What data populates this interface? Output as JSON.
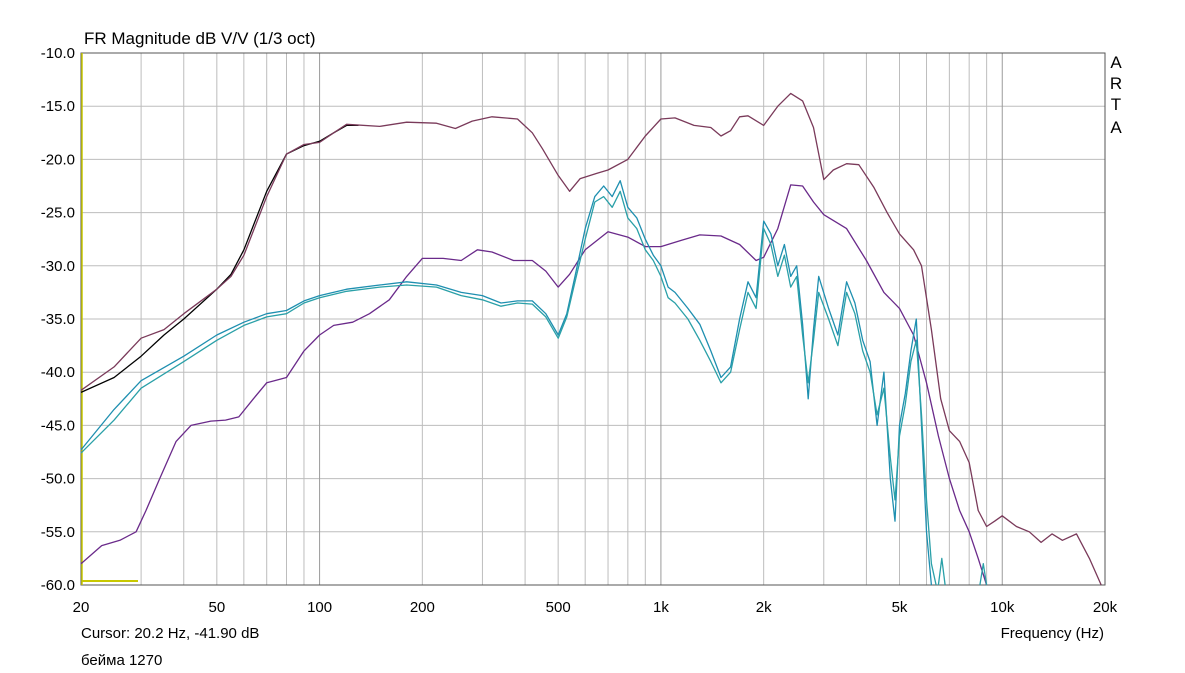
{
  "chart_data": {
    "type": "line",
    "title": "FR Magnitude dB V/V (1/3 oct)",
    "xlabel": "Frequency (Hz)",
    "ylabel": "",
    "x_scale": "log",
    "xlim": [
      20,
      20000
    ],
    "ylim": [
      -60,
      -10
    ],
    "grid": true,
    "y_ticks": [
      "-10.0",
      "-15.0",
      "-20.0",
      "-25.0",
      "-30.0",
      "-35.0",
      "-40.0",
      "-45.0",
      "-50.0",
      "-55.0",
      "-60.0"
    ],
    "x_ticks": [
      {
        "value": 20,
        "label": "20"
      },
      {
        "value": 50,
        "label": "50"
      },
      {
        "value": 100,
        "label": "100"
      },
      {
        "value": 200,
        "label": "200"
      },
      {
        "value": 500,
        "label": "500"
      },
      {
        "value": 1000,
        "label": "1k"
      },
      {
        "value": 2000,
        "label": "2k"
      },
      {
        "value": 5000,
        "label": "5k"
      },
      {
        "value": 10000,
        "label": "10k"
      },
      {
        "value": 20000,
        "label": "20k"
      }
    ],
    "series": [
      {
        "color": "#000000",
        "points": [
          [
            20,
            -41.9
          ],
          [
            25,
            -40.5
          ],
          [
            30,
            -38.5
          ],
          [
            35,
            -36.5
          ],
          [
            40,
            -35
          ],
          [
            50,
            -32.2
          ],
          [
            55,
            -30.8
          ],
          [
            60,
            -28.5
          ],
          [
            70,
            -23
          ],
          [
            80,
            -19.5
          ],
          [
            90,
            -18.7
          ],
          [
            100,
            -18.3
          ],
          [
            110,
            -17.5
          ],
          [
            120,
            -16.8
          ],
          [
            130,
            -16.8
          ]
        ]
      },
      {
        "color": "#7a3a5a",
        "points": [
          [
            20,
            -41.7
          ],
          [
            25,
            -39.5
          ],
          [
            30,
            -36.8
          ],
          [
            35,
            -36
          ],
          [
            40,
            -34.5
          ],
          [
            50,
            -32.2
          ],
          [
            55,
            -31
          ],
          [
            60,
            -29
          ],
          [
            70,
            -23.5
          ],
          [
            80,
            -19.5
          ],
          [
            90,
            -18.6
          ],
          [
            100,
            -18.4
          ],
          [
            110,
            -17.5
          ],
          [
            120,
            -16.7
          ],
          [
            150,
            -16.9
          ],
          [
            180,
            -16.5
          ],
          [
            220,
            -16.6
          ],
          [
            250,
            -17.1
          ],
          [
            280,
            -16.4
          ],
          [
            320,
            -16.0
          ],
          [
            380,
            -16.2
          ],
          [
            420,
            -17.5
          ],
          [
            450,
            -19
          ],
          [
            500,
            -21.5
          ],
          [
            540,
            -23
          ],
          [
            580,
            -21.8
          ],
          [
            650,
            -21.3
          ],
          [
            700,
            -21
          ],
          [
            800,
            -20
          ],
          [
            900,
            -17.8
          ],
          [
            1000,
            -16.2
          ],
          [
            1100,
            -16.1
          ],
          [
            1250,
            -16.8
          ],
          [
            1400,
            -17.0
          ],
          [
            1500,
            -17.8
          ],
          [
            1600,
            -17.3
          ],
          [
            1700,
            -16.0
          ],
          [
            1800,
            -15.9
          ],
          [
            2000,
            -16.8
          ],
          [
            2200,
            -15
          ],
          [
            2400,
            -13.8
          ],
          [
            2600,
            -14.5
          ],
          [
            2800,
            -17
          ],
          [
            3000,
            -21.9
          ],
          [
            3200,
            -21
          ],
          [
            3500,
            -20.4
          ],
          [
            3800,
            -20.5
          ],
          [
            4200,
            -22.6
          ],
          [
            4600,
            -25
          ],
          [
            5000,
            -27
          ],
          [
            5500,
            -28.5
          ],
          [
            5800,
            -30
          ],
          [
            6200,
            -36
          ],
          [
            6600,
            -42.5
          ],
          [
            7000,
            -45.5
          ],
          [
            7500,
            -46.5
          ],
          [
            8000,
            -48.5
          ],
          [
            8500,
            -53
          ],
          [
            9000,
            -54.5
          ],
          [
            9500,
            -54
          ],
          [
            10000,
            -53.5
          ],
          [
            11000,
            -54.5
          ],
          [
            12000,
            -55
          ],
          [
            13000,
            -56
          ],
          [
            14000,
            -55.2
          ],
          [
            15000,
            -55.8
          ],
          [
            16500,
            -55.2
          ],
          [
            18000,
            -57.5
          ],
          [
            19500,
            -60
          ]
        ]
      },
      {
        "color": "#6a2a8a",
        "points": [
          [
            20,
            -58
          ],
          [
            23,
            -56.3
          ],
          [
            26,
            -55.8
          ],
          [
            29,
            -55
          ],
          [
            31,
            -53
          ],
          [
            34,
            -50
          ],
          [
            38,
            -46.5
          ],
          [
            42,
            -45
          ],
          [
            48,
            -44.6
          ],
          [
            53,
            -44.5
          ],
          [
            58,
            -44.2
          ],
          [
            64,
            -42.5
          ],
          [
            70,
            -41
          ],
          [
            80,
            -40.5
          ],
          [
            90,
            -38
          ],
          [
            100,
            -36.5
          ],
          [
            110,
            -35.6
          ],
          [
            125,
            -35.3
          ],
          [
            140,
            -34.5
          ],
          [
            160,
            -33.2
          ],
          [
            180,
            -31
          ],
          [
            200,
            -29.3
          ],
          [
            230,
            -29.3
          ],
          [
            260,
            -29.5
          ],
          [
            290,
            -28.5
          ],
          [
            320,
            -28.7
          ],
          [
            370,
            -29.5
          ],
          [
            420,
            -29.5
          ],
          [
            460,
            -30.5
          ],
          [
            500,
            -32
          ],
          [
            540,
            -30.8
          ],
          [
            600,
            -28.5
          ],
          [
            700,
            -26.8
          ],
          [
            800,
            -27.3
          ],
          [
            900,
            -28.2
          ],
          [
            1000,
            -28.2
          ],
          [
            1150,
            -27.6
          ],
          [
            1300,
            -27.1
          ],
          [
            1500,
            -27.2
          ],
          [
            1700,
            -28.0
          ],
          [
            1900,
            -29.5
          ],
          [
            2000,
            -29.2
          ],
          [
            2200,
            -26.5
          ],
          [
            2400,
            -22.4
          ],
          [
            2600,
            -22.5
          ],
          [
            2800,
            -24
          ],
          [
            3000,
            -25.2
          ],
          [
            3500,
            -26.5
          ],
          [
            4000,
            -29.5
          ],
          [
            4500,
            -32.5
          ],
          [
            5000,
            -34
          ],
          [
            5500,
            -36.5
          ],
          [
            6000,
            -41
          ],
          [
            6500,
            -46
          ],
          [
            7000,
            -50
          ],
          [
            7500,
            -53
          ],
          [
            8000,
            -55
          ],
          [
            8500,
            -57.5
          ],
          [
            9000,
            -60
          ]
        ]
      },
      {
        "color": "#1e8fb0",
        "points": [
          [
            20,
            -47.3
          ],
          [
            25,
            -43.5
          ],
          [
            30,
            -40.8
          ],
          [
            40,
            -38.5
          ],
          [
            50,
            -36.5
          ],
          [
            60,
            -35.3
          ],
          [
            70,
            -34.5
          ],
          [
            80,
            -34.2
          ],
          [
            90,
            -33.3
          ],
          [
            100,
            -32.8
          ],
          [
            120,
            -32.2
          ],
          [
            150,
            -31.8
          ],
          [
            180,
            -31.5
          ],
          [
            220,
            -31.8
          ],
          [
            260,
            -32.5
          ],
          [
            300,
            -32.8
          ],
          [
            340,
            -33.5
          ],
          [
            380,
            -33.3
          ],
          [
            420,
            -33.3
          ],
          [
            460,
            -34.5
          ],
          [
            500,
            -36.5
          ],
          [
            530,
            -34.5
          ],
          [
            560,
            -31
          ],
          [
            600,
            -26.5
          ],
          [
            640,
            -23.5
          ],
          [
            680,
            -22.5
          ],
          [
            720,
            -23.5
          ],
          [
            760,
            -22
          ],
          [
            800,
            -24.5
          ],
          [
            850,
            -25.5
          ],
          [
            900,
            -27.5
          ],
          [
            950,
            -29
          ],
          [
            1000,
            -30
          ],
          [
            1050,
            -32
          ],
          [
            1100,
            -32.5
          ],
          [
            1200,
            -34
          ],
          [
            1300,
            -35.5
          ],
          [
            1400,
            -38
          ],
          [
            1500,
            -40.5
          ],
          [
            1600,
            -39.5
          ],
          [
            1700,
            -35
          ],
          [
            1800,
            -31.5
          ],
          [
            1900,
            -33
          ],
          [
            2000,
            -25.8
          ],
          [
            2100,
            -27
          ],
          [
            2200,
            -30
          ],
          [
            2300,
            -28
          ],
          [
            2400,
            -31
          ],
          [
            2500,
            -30
          ],
          [
            2600,
            -35.5
          ],
          [
            2700,
            -42.5
          ],
          [
            2800,
            -36
          ],
          [
            2900,
            -31
          ],
          [
            3100,
            -34
          ],
          [
            3300,
            -36.5
          ],
          [
            3500,
            -31.5
          ],
          [
            3700,
            -33.5
          ],
          [
            3900,
            -37
          ],
          [
            4100,
            -39
          ],
          [
            4300,
            -45
          ],
          [
            4500,
            -40
          ],
          [
            4700,
            -50
          ],
          [
            4850,
            -54
          ],
          [
            5000,
            -45
          ],
          [
            5200,
            -42
          ],
          [
            5400,
            -38
          ],
          [
            5600,
            -35
          ],
          [
            5800,
            -45
          ],
          [
            6000,
            -55
          ],
          [
            6200,
            -60
          ]
        ]
      },
      {
        "color": "#2aa0a8",
        "points": [
          [
            20,
            -47.6
          ],
          [
            25,
            -44.5
          ],
          [
            30,
            -41.5
          ],
          [
            40,
            -39
          ],
          [
            50,
            -37
          ],
          [
            60,
            -35.6
          ],
          [
            70,
            -34.8
          ],
          [
            80,
            -34.5
          ],
          [
            90,
            -33.5
          ],
          [
            100,
            -33
          ],
          [
            120,
            -32.4
          ],
          [
            150,
            -32
          ],
          [
            180,
            -31.8
          ],
          [
            220,
            -32
          ],
          [
            260,
            -32.8
          ],
          [
            300,
            -33.2
          ],
          [
            340,
            -33.8
          ],
          [
            380,
            -33.5
          ],
          [
            420,
            -33.6
          ],
          [
            460,
            -34.8
          ],
          [
            500,
            -36.8
          ],
          [
            530,
            -34.8
          ],
          [
            560,
            -31.5
          ],
          [
            600,
            -27.5
          ],
          [
            640,
            -24
          ],
          [
            680,
            -23.5
          ],
          [
            720,
            -24.5
          ],
          [
            760,
            -23
          ],
          [
            800,
            -25.5
          ],
          [
            850,
            -26.5
          ],
          [
            900,
            -28.5
          ],
          [
            950,
            -29.5
          ],
          [
            1000,
            -31
          ],
          [
            1050,
            -33
          ],
          [
            1100,
            -33.5
          ],
          [
            1200,
            -35
          ],
          [
            1300,
            -37
          ],
          [
            1400,
            -39
          ],
          [
            1500,
            -41
          ],
          [
            1600,
            -40
          ],
          [
            1700,
            -36
          ],
          [
            1800,
            -32.5
          ],
          [
            1900,
            -34
          ],
          [
            2000,
            -26.5
          ],
          [
            2100,
            -28
          ],
          [
            2200,
            -31
          ],
          [
            2300,
            -29
          ],
          [
            2400,
            -32
          ],
          [
            2500,
            -31
          ],
          [
            2600,
            -36.5
          ],
          [
            2700,
            -41
          ],
          [
            2800,
            -37
          ],
          [
            2900,
            -32.5
          ],
          [
            3100,
            -35
          ],
          [
            3300,
            -37.5
          ],
          [
            3500,
            -32.5
          ],
          [
            3700,
            -34.5
          ],
          [
            3900,
            -38
          ],
          [
            4100,
            -40
          ],
          [
            4300,
            -44
          ],
          [
            4500,
            -41.5
          ],
          [
            4700,
            -48
          ],
          [
            4850,
            -52
          ],
          [
            5000,
            -46
          ],
          [
            5200,
            -43
          ],
          [
            5400,
            -39
          ],
          [
            5600,
            -37
          ],
          [
            5800,
            -44
          ],
          [
            6000,
            -52
          ],
          [
            6200,
            -58
          ],
          [
            6400,
            -60
          ]
        ]
      }
    ]
  },
  "chart_fragments": [
    {
      "color": "#2aa0a8",
      "points": [
        [
          6500,
          -60
        ],
        [
          6650,
          -57.5
        ],
        [
          6800,
          -60
        ]
      ]
    },
    {
      "color": "#2aa0a8",
      "points": [
        [
          8600,
          -60
        ],
        [
          8800,
          -58
        ],
        [
          9000,
          -60
        ]
      ]
    }
  ],
  "brand": [
    "A",
    "R",
    "T",
    "A"
  ],
  "footer": {
    "cursor": "Cursor: 20.2 Hz, -41.90 dB",
    "name": "бейма 1270"
  },
  "colors": {
    "grid": "#bdbdbd",
    "grid_major": "#9a9a9a",
    "axis": "#555555",
    "cursor_marker": "#c8c800"
  }
}
